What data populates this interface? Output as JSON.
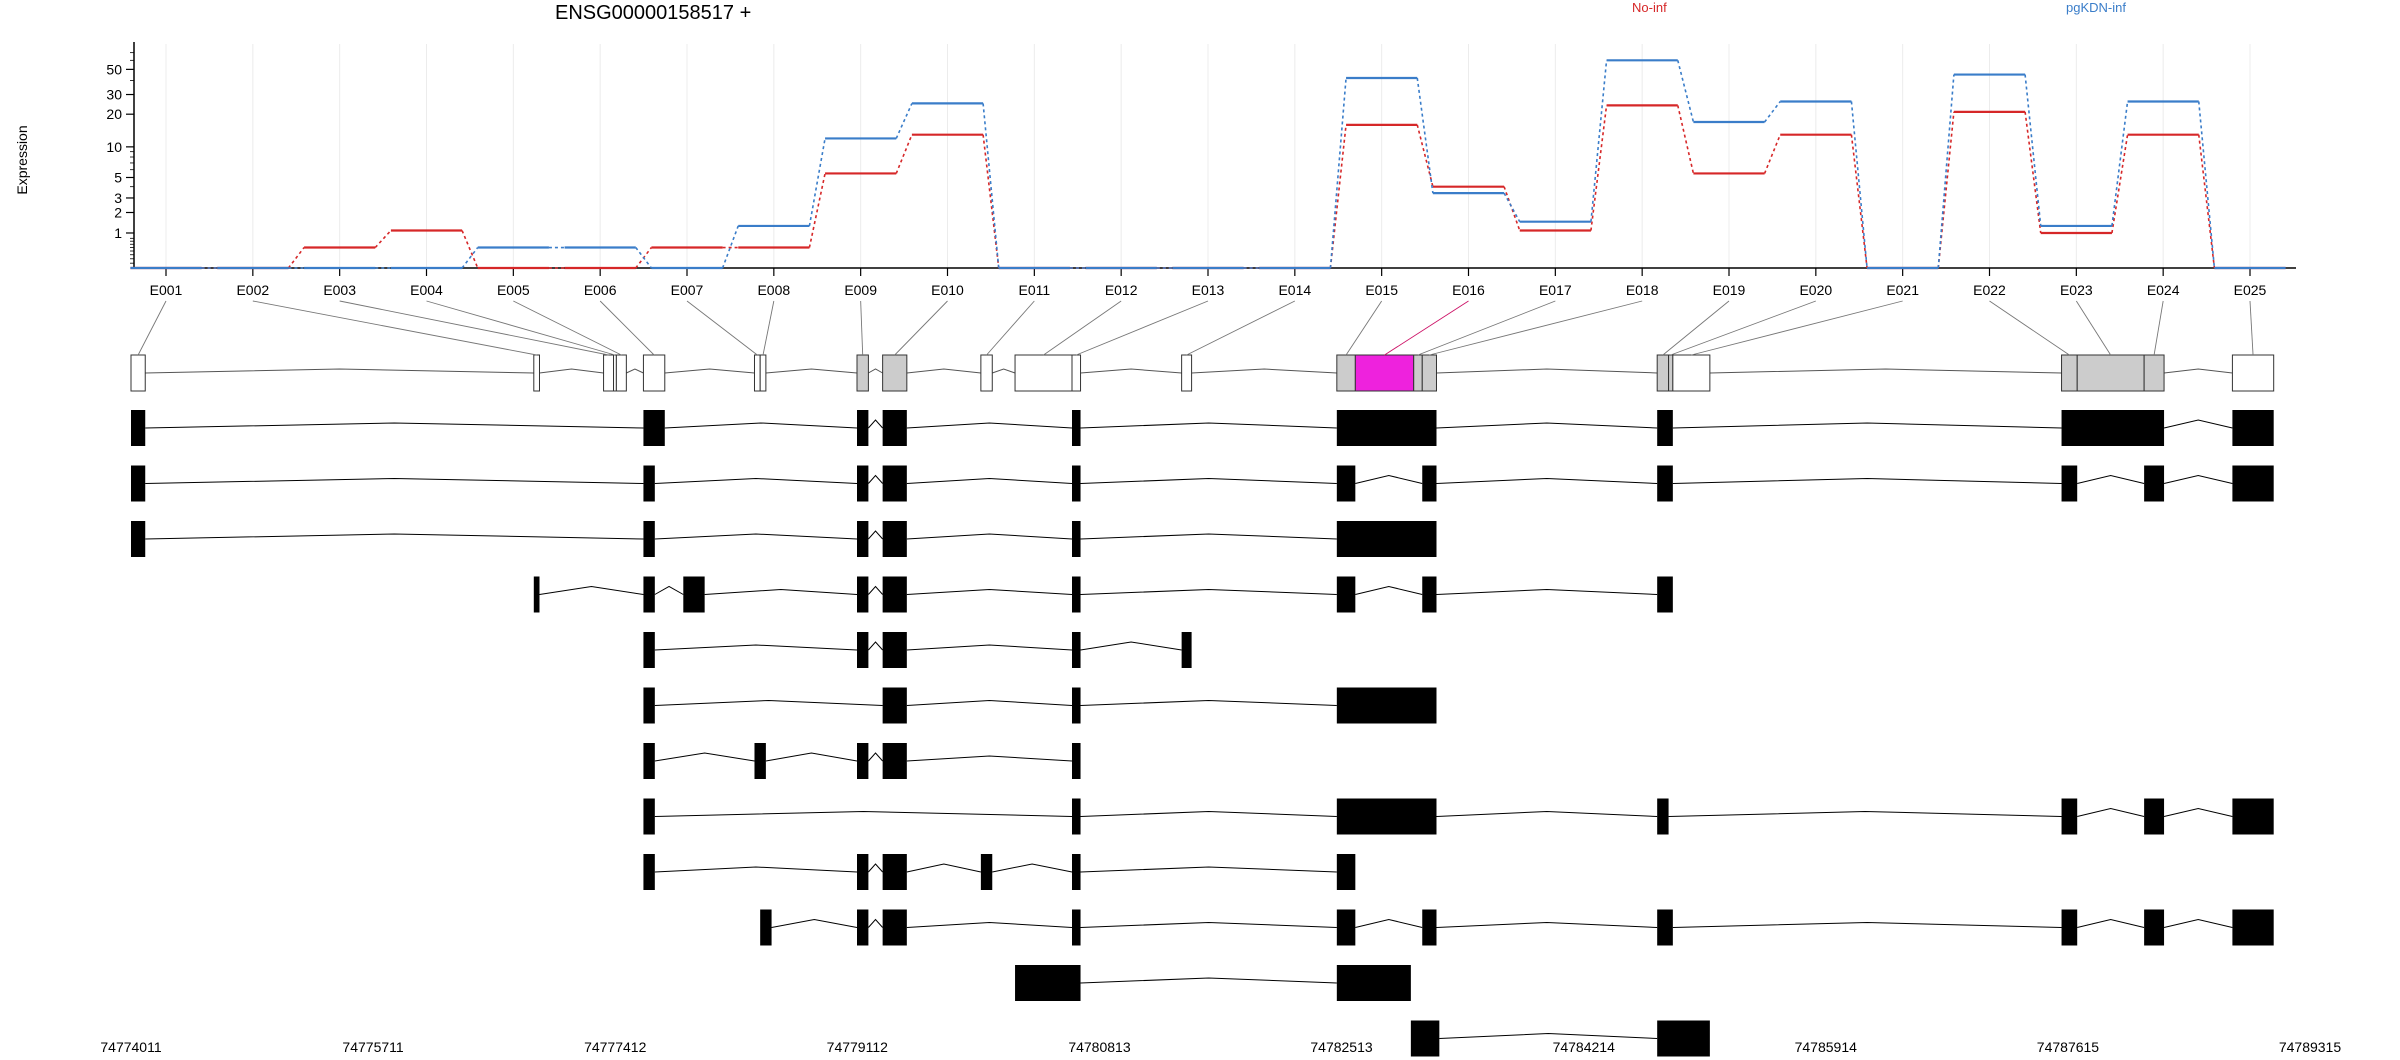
{
  "gene": {
    "title": "ENSG00000158517 +"
  },
  "legend": [
    {
      "name": "No-inf",
      "color": "#d62728"
    },
    {
      "name": "pgKDN-inf",
      "color": "#3a7dc9"
    }
  ],
  "chart_data": {
    "type": "line",
    "title": "ENSG00000158517 +",
    "ylabel": "Expression",
    "yscale": "log (1+x)",
    "yticks": [
      1,
      2,
      3,
      5,
      10,
      20,
      30,
      50
    ],
    "ylim": [
      0,
      80
    ],
    "categories": [
      "E001",
      "E002",
      "E003",
      "E004",
      "E005",
      "E006",
      "E007",
      "E008",
      "E009",
      "E010",
      "E011",
      "E012",
      "E013",
      "E014",
      "E015",
      "E016",
      "E017",
      "E018",
      "E019",
      "E020",
      "E021",
      "E022",
      "E023",
      "E024",
      "E025"
    ],
    "series": [
      {
        "name": "No-inf",
        "color": "#d62728",
        "values": [
          0,
          0,
          0.5,
          1.1,
          0,
          0,
          0.5,
          0.5,
          5.5,
          13,
          0,
          0,
          0,
          0,
          16,
          4,
          1.1,
          24,
          5.5,
          13,
          0,
          21,
          1,
          13,
          0
        ]
      },
      {
        "name": "pgKDN-inf",
        "color": "#3a7dc9",
        "values": [
          0,
          0,
          0,
          0,
          0.5,
          0.5,
          0,
          1.3,
          12,
          25,
          0,
          0,
          0,
          0,
          42,
          3.4,
          1.5,
          60,
          17,
          26,
          0,
          45,
          1.3,
          26,
          0
        ]
      }
    ]
  },
  "genome_axis": {
    "positions": [
      74774011,
      74775711,
      74777412,
      74779112,
      74780813,
      74782513,
      74784214,
      74785914,
      74787615,
      74789315
    ],
    "labels": [
      "74774011",
      "74775711",
      "74777412",
      "74779112",
      "74780813",
      "74782513",
      "74784214",
      "74785914",
      "74787615",
      "74789315"
    ]
  },
  "exon_bins": [
    {
      "id": "E001",
      "start": 74774011,
      "end": 74774111,
      "fill": "#ffffff"
    },
    {
      "id": "E002",
      "start": 74776840,
      "end": 74776880,
      "fill": "#ffffff"
    },
    {
      "id": "E003",
      "start": 74777330,
      "end": 74777400,
      "fill": "#ffffff"
    },
    {
      "id": "E004",
      "start": 74777400,
      "end": 74777420,
      "fill": "#ffffff"
    },
    {
      "id": "E005",
      "start": 74777420,
      "end": 74777490,
      "fill": "#ffffff"
    },
    {
      "id": "E006",
      "start": 74777610,
      "end": 74777760,
      "fill": "#ffffff"
    },
    {
      "id": "E007",
      "start": 74778390,
      "end": 74778430,
      "fill": "#ffffff"
    },
    {
      "id": "E008",
      "start": 74778430,
      "end": 74778470,
      "fill": "#ffffff"
    },
    {
      "id": "E009",
      "start": 74779110,
      "end": 74779190,
      "fill": "#cccccc"
    },
    {
      "id": "E010",
      "start": 74779290,
      "end": 74779460,
      "fill": "#cccccc"
    },
    {
      "id": "E011",
      "start": 74779980,
      "end": 74780060,
      "fill": "#ffffff"
    },
    {
      "id": "E012",
      "start": 74780220,
      "end": 74780620,
      "fill": "#ffffff"
    },
    {
      "id": "E013",
      "start": 74780620,
      "end": 74780680,
      "fill": "#ffffff"
    },
    {
      "id": "E014",
      "start": 74781390,
      "end": 74781460,
      "fill": "#ffffff"
    },
    {
      "id": "E015",
      "start": 74782480,
      "end": 74782610,
      "fill": "#cccccc"
    },
    {
      "id": "E016",
      "start": 74782610,
      "end": 74783020,
      "fill": "#ee22dd"
    },
    {
      "id": "E017",
      "start": 74783020,
      "end": 74783080,
      "fill": "#cccccc"
    },
    {
      "id": "E018",
      "start": 74783080,
      "end": 74783180,
      "fill": "#cccccc"
    },
    {
      "id": "E019",
      "start": 74784730,
      "end": 74784810,
      "fill": "#cccccc"
    },
    {
      "id": "E020",
      "start": 74784810,
      "end": 74784840,
      "fill": "#cccccc"
    },
    {
      "id": "E021",
      "start": 74784840,
      "end": 74785100,
      "fill": "#ffffff"
    },
    {
      "id": "E022",
      "start": 74787570,
      "end": 74787680,
      "fill": "#cccccc"
    },
    {
      "id": "E023",
      "start": 74787680,
      "end": 74788150,
      "fill": "#cccccc"
    },
    {
      "id": "E024",
      "start": 74788150,
      "end": 74788290,
      "fill": "#cccccc"
    },
    {
      "id": "E025",
      "start": 74788770,
      "end": 74789060,
      "fill": "#ffffff"
    }
  ],
  "transcripts": [
    [
      [
        74774011,
        74774111
      ],
      [
        74777610,
        74777760
      ],
      [
        74779110,
        74779190
      ],
      [
        74779290,
        74779460
      ],
      [
        74780620,
        74780680
      ],
      [
        74782480,
        74783180
      ],
      [
        74784730,
        74784840
      ],
      [
        74787570,
        74788290
      ],
      [
        74788770,
        74789060
      ]
    ],
    [
      [
        74774011,
        74774111
      ],
      [
        74777610,
        74777690
      ],
      [
        74779110,
        74779190
      ],
      [
        74779290,
        74779460
      ],
      [
        74780620,
        74780680
      ],
      [
        74782480,
        74782610
      ],
      [
        74783080,
        74783180
      ],
      [
        74784730,
        74784840
      ],
      [
        74787570,
        74787680
      ],
      [
        74788150,
        74788290
      ],
      [
        74788770,
        74789060
      ]
    ],
    [
      [
        74774011,
        74774111
      ],
      [
        74777610,
        74777690
      ],
      [
        74779110,
        74779190
      ],
      [
        74779290,
        74779460
      ],
      [
        74780620,
        74780680
      ],
      [
        74782480,
        74783180
      ]
    ],
    [
      [
        74776840,
        74776880
      ],
      [
        74777610,
        74777690
      ],
      [
        74777890,
        74778040
      ],
      [
        74779110,
        74779190
      ],
      [
        74779290,
        74779460
      ],
      [
        74780620,
        74780680
      ],
      [
        74782480,
        74782610
      ],
      [
        74783080,
        74783180
      ],
      [
        74784730,
        74784840
      ]
    ],
    [
      [
        74777610,
        74777690
      ],
      [
        74779110,
        74779190
      ],
      [
        74779290,
        74779460
      ],
      [
        74780620,
        74780680
      ],
      [
        74781390,
        74781460
      ]
    ],
    [
      [
        74777610,
        74777690
      ],
      [
        74779290,
        74779460
      ],
      [
        74780620,
        74780680
      ],
      [
        74782480,
        74783180
      ]
    ],
    [
      [
        74777610,
        74777690
      ],
      [
        74778390,
        74778470
      ],
      [
        74779110,
        74779190
      ],
      [
        74779290,
        74779460
      ],
      [
        74780620,
        74780680
      ]
    ],
    [
      [
        74777610,
        74777690
      ],
      [
        74780620,
        74780680
      ],
      [
        74782480,
        74783180
      ],
      [
        74784730,
        74784810
      ],
      [
        74787570,
        74787680
      ],
      [
        74788150,
        74788290
      ],
      [
        74788770,
        74789060
      ]
    ],
    [
      [
        74777610,
        74777690
      ],
      [
        74779110,
        74779190
      ],
      [
        74779290,
        74779460
      ],
      [
        74779980,
        74780060
      ],
      [
        74780620,
        74780680
      ],
      [
        74782480,
        74782610
      ]
    ],
    [
      [
        74778430,
        74778510
      ],
      [
        74779110,
        74779190
      ],
      [
        74779290,
        74779460
      ],
      [
        74780620,
        74780680
      ],
      [
        74782480,
        74782610
      ],
      [
        74783080,
        74783180
      ],
      [
        74784730,
        74784840
      ],
      [
        74787570,
        74787680
      ],
      [
        74788150,
        74788290
      ],
      [
        74788770,
        74789060
      ]
    ],
    [
      [
        74780220,
        74780680
      ],
      [
        74782480,
        74783000
      ]
    ],
    [
      [
        74783000,
        74783200
      ],
      [
        74784730,
        74785100
      ]
    ]
  ]
}
